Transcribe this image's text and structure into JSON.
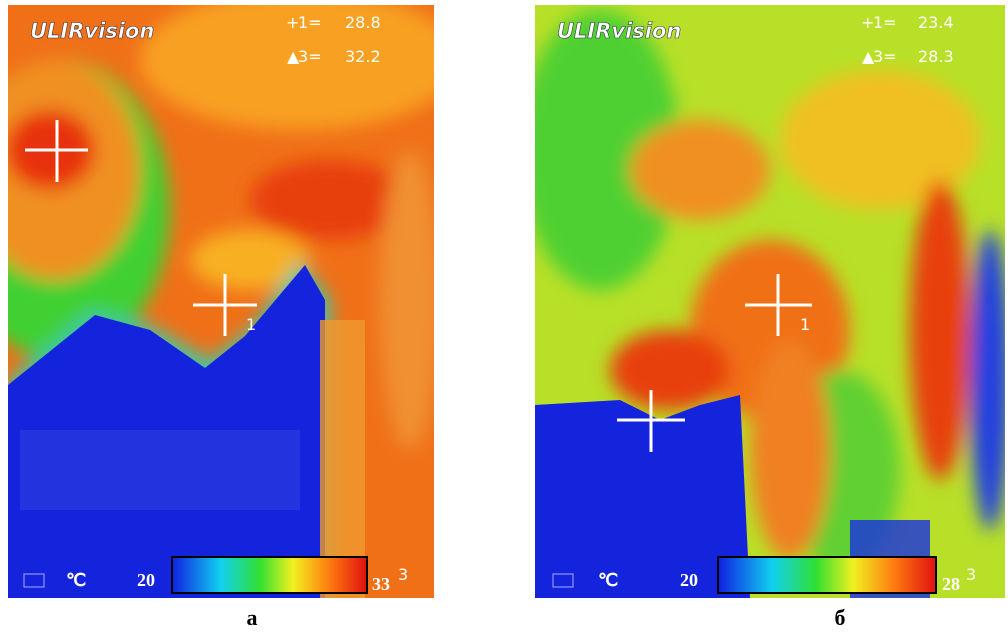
{
  "panels": [
    {
      "brand": "ULIRvision",
      "readings": [
        {
          "label": "1=",
          "value": "28.8"
        },
        {
          "label": "3=",
          "value": "32.2"
        }
      ],
      "marker": "1",
      "unit": "℃",
      "scale": {
        "min": "20",
        "max": "33",
        "index": "3"
      },
      "caption": "а"
    },
    {
      "brand": "ULIRvision",
      "readings": [
        {
          "label": "1=",
          "value": "23.4"
        },
        {
          "label": "3=",
          "value": "28.3"
        }
      ],
      "marker": "1",
      "unit": "℃",
      "scale": {
        "min": "20",
        "max": "28",
        "index": "3"
      },
      "caption": "б"
    }
  ]
}
